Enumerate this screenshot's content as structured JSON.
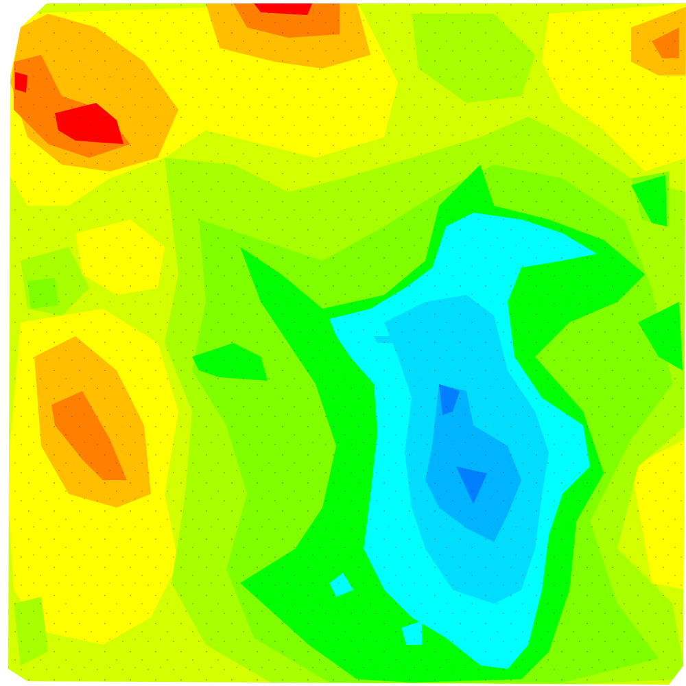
{
  "map": {
    "type": "filled-contour-elevation",
    "palette": {
      "very_high": "#ff0000",
      "high": "#ff8000",
      "upper_mid": "#ffbf00",
      "mid_high": "#ffff00",
      "mid": "#d4ff00",
      "lower_mid": "#a8ff00",
      "low_mid": "#80ff00",
      "low": "#00ff00",
      "lower": "#00ffff",
      "deep": "#00ddff",
      "deeper": "#00b4ff",
      "deepest": "#0080ff"
    }
  }
}
